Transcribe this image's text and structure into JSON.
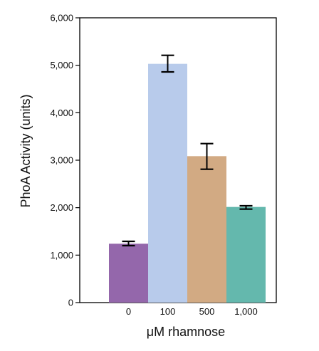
{
  "chart_data": {
    "type": "bar",
    "categories": [
      "0",
      "100",
      "500",
      "1,000"
    ],
    "values": [
      1240,
      5030,
      3085,
      2015
    ],
    "errors": [
      [
        1200,
        1290
      ],
      [
        4860,
        5210
      ],
      [
        2810,
        3350
      ],
      [
        1970,
        2040
      ]
    ],
    "colors": [
      "#9467ab",
      "#b8cbeb",
      "#d2aa83",
      "#64b8ad"
    ],
    "title": "",
    "xlabel": "μM rhamnose",
    "ylabel": "PhoA Activity (units)",
    "ylim": [
      0,
      6000
    ],
    "yticks": [
      0,
      1000,
      2000,
      3000,
      4000,
      5000,
      6000
    ],
    "ytick_labels": [
      "0",
      "1,000",
      "2,000",
      "3,000",
      "4,000",
      "5,000",
      "6,000"
    ],
    "grid": false,
    "legend": "none"
  }
}
